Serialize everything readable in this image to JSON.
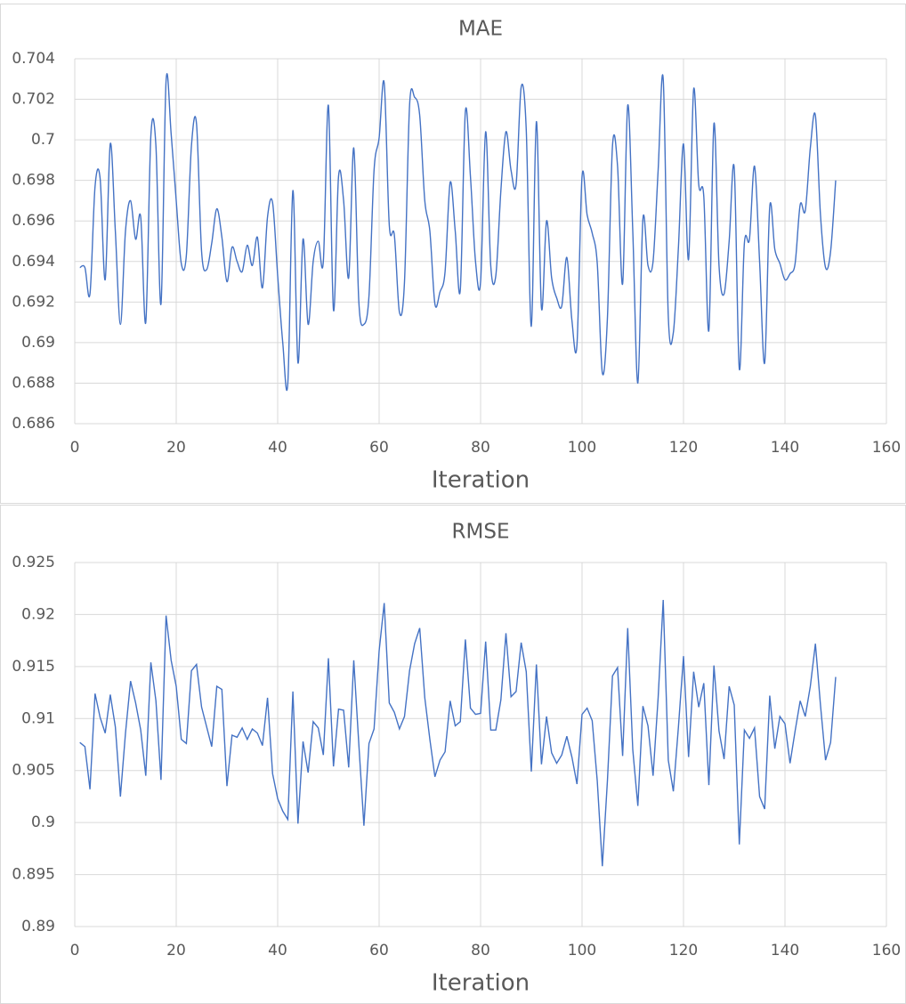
{
  "chart_data": [
    {
      "type": "line",
      "title": "MAE",
      "x_label": "Iteration",
      "smooth": true,
      "grid": true,
      "x": [
        1,
        2,
        3,
        4,
        5,
        6,
        7,
        8,
        9,
        10,
        11,
        12,
        13,
        14,
        15,
        16,
        17,
        18,
        19,
        20,
        21,
        22,
        23,
        24,
        25,
        26,
        27,
        28,
        29,
        30,
        31,
        32,
        33,
        34,
        35,
        36,
        37,
        38,
        39,
        40,
        41,
        42,
        43,
        44,
        45,
        46,
        47,
        48,
        49,
        50,
        51,
        52,
        53,
        54,
        55,
        56,
        57,
        58,
        59,
        60,
        61,
        62,
        63,
        64,
        65,
        66,
        67,
        68,
        69,
        70,
        71,
        72,
        73,
        74,
        75,
        76,
        77,
        78,
        79,
        80,
        81,
        82,
        83,
        84,
        85,
        86,
        87,
        88,
        89,
        90,
        91,
        92,
        93,
        94,
        95,
        96,
        97,
        98,
        99,
        100,
        101,
        102,
        103,
        104,
        105,
        106,
        107,
        108,
        109,
        110,
        111,
        112,
        113,
        114,
        115,
        116,
        117,
        118,
        119,
        120,
        121,
        122,
        123,
        124,
        125,
        126,
        127,
        128,
        129,
        130,
        131,
        132,
        133,
        134,
        135,
        136,
        137,
        138,
        139,
        140,
        141,
        142,
        143,
        144,
        145,
        146,
        147,
        148,
        149,
        150
      ],
      "series": [
        {
          "color": "#4472c4",
          "values": [
            0.6937,
            0.6937,
            0.6924,
            0.6977,
            0.6981,
            0.6931,
            0.6998,
            0.6955,
            0.6909,
            0.6955,
            0.697,
            0.6951,
            0.6962,
            0.691,
            0.7002,
            0.6997,
            0.6919,
            0.7029,
            0.7003,
            0.697,
            0.6939,
            0.6943,
            0.6997,
            0.7008,
            0.6945,
            0.6936,
            0.6949,
            0.6966,
            0.6952,
            0.693,
            0.6947,
            0.694,
            0.6935,
            0.6948,
            0.6938,
            0.6952,
            0.6927,
            0.6962,
            0.6969,
            0.6933,
            0.69,
            0.688,
            0.6975,
            0.689,
            0.6951,
            0.6909,
            0.694,
            0.695,
            0.694,
            0.7017,
            0.6916,
            0.6982,
            0.697,
            0.6932,
            0.6996,
            0.692,
            0.6909,
            0.6923,
            0.6985,
            0.7001,
            0.7028,
            0.6958,
            0.6953,
            0.6915,
            0.693,
            0.7017,
            0.7021,
            0.7012,
            0.697,
            0.6955,
            0.6919,
            0.6925,
            0.6935,
            0.6979,
            0.6955,
            0.6926,
            0.7014,
            0.6982,
            0.694,
            0.693,
            0.7004,
            0.6938,
            0.6933,
            0.6975,
            0.7004,
            0.6985,
            0.6978,
            0.7026,
            0.7005,
            0.6908,
            0.7009,
            0.6917,
            0.696,
            0.6932,
            0.6922,
            0.6918,
            0.6942,
            0.6911,
            0.6899,
            0.6982,
            0.6963,
            0.6954,
            0.6939,
            0.6885,
            0.6912,
            0.6997,
            0.6987,
            0.6929,
            0.7017,
            0.6955,
            0.688,
            0.6961,
            0.6938,
            0.694,
            0.6985,
            0.703,
            0.6913,
            0.6905,
            0.6947,
            0.6998,
            0.6941,
            0.7025,
            0.6978,
            0.6972,
            0.6906,
            0.7008,
            0.6938,
            0.6924,
            0.695,
            0.6986,
            0.6887,
            0.6949,
            0.6951,
            0.6987,
            0.694,
            0.689,
            0.6967,
            0.6946,
            0.6939,
            0.6931,
            0.6934,
            0.6939,
            0.6968,
            0.6965,
            0.6996,
            0.7012,
            0.6963,
            0.6937,
            0.6945,
            0.698
          ]
        }
      ],
      "xlim": [
        0,
        160
      ],
      "xticks": [
        0,
        20,
        40,
        60,
        80,
        100,
        120,
        140,
        160
      ],
      "ylim": [
        0.686,
        0.704
      ],
      "yticks": [
        0.686,
        0.688,
        0.69,
        0.692,
        0.694,
        0.696,
        0.698,
        0.7,
        0.702,
        0.704
      ]
    },
    {
      "type": "line",
      "title": "RMSE",
      "x_label": "Iteration",
      "smooth": false,
      "grid": true,
      "x": [
        1,
        2,
        3,
        4,
        5,
        6,
        7,
        8,
        9,
        10,
        11,
        12,
        13,
        14,
        15,
        16,
        17,
        18,
        19,
        20,
        21,
        22,
        23,
        24,
        25,
        26,
        27,
        28,
        29,
        30,
        31,
        32,
        33,
        34,
        35,
        36,
        37,
        38,
        39,
        40,
        41,
        42,
        43,
        44,
        45,
        46,
        47,
        48,
        49,
        50,
        51,
        52,
        53,
        54,
        55,
        56,
        57,
        58,
        59,
        60,
        61,
        62,
        63,
        64,
        65,
        66,
        67,
        68,
        69,
        70,
        71,
        72,
        73,
        74,
        75,
        76,
        77,
        78,
        79,
        80,
        81,
        82,
        83,
        84,
        85,
        86,
        87,
        88,
        89,
        90,
        91,
        92,
        93,
        94,
        95,
        96,
        97,
        98,
        99,
        100,
        101,
        102,
        103,
        104,
        105,
        106,
        107,
        108,
        109,
        110,
        111,
        112,
        113,
        114,
        115,
        116,
        117,
        118,
        119,
        120,
        121,
        122,
        123,
        124,
        125,
        126,
        127,
        128,
        129,
        130,
        131,
        132,
        133,
        134,
        135,
        136,
        137,
        138,
        139,
        140,
        141,
        142,
        143,
        144,
        145,
        146,
        147,
        148,
        149,
        150
      ],
      "series": [
        {
          "color": "#4472c4",
          "values": [
            0.9077,
            0.9073,
            0.9032,
            0.9124,
            0.9101,
            0.9086,
            0.9123,
            0.9092,
            0.9025,
            0.9086,
            0.9136,
            0.9115,
            0.9089,
            0.9045,
            0.9154,
            0.9117,
            0.9041,
            0.9199,
            0.9156,
            0.9131,
            0.908,
            0.9076,
            0.9146,
            0.9152,
            0.9111,
            0.9092,
            0.9073,
            0.9131,
            0.9128,
            0.9035,
            0.9084,
            0.9082,
            0.9091,
            0.908,
            0.909,
            0.9086,
            0.9074,
            0.912,
            0.9047,
            0.9023,
            0.9011,
            0.9003,
            0.9126,
            0.8999,
            0.9078,
            0.9048,
            0.9097,
            0.9091,
            0.9065,
            0.9158,
            0.9054,
            0.9109,
            0.9108,
            0.9053,
            0.9156,
            0.9075,
            0.8997,
            0.9076,
            0.909,
            0.9165,
            0.9211,
            0.9115,
            0.9106,
            0.909,
            0.9102,
            0.9146,
            0.9172,
            0.9187,
            0.912,
            0.908,
            0.9044,
            0.906,
            0.9068,
            0.9117,
            0.9093,
            0.9097,
            0.9176,
            0.911,
            0.9104,
            0.9105,
            0.9174,
            0.9089,
            0.9089,
            0.9118,
            0.9182,
            0.9121,
            0.9126,
            0.9173,
            0.9145,
            0.9049,
            0.9152,
            0.9056,
            0.9102,
            0.9067,
            0.9057,
            0.9065,
            0.9083,
            0.9063,
            0.9037,
            0.9104,
            0.911,
            0.9098,
            0.904,
            0.8958,
            0.904,
            0.9141,
            0.9149,
            0.9064,
            0.9187,
            0.907,
            0.9016,
            0.9112,
            0.9093,
            0.9045,
            0.912,
            0.9214,
            0.906,
            0.903,
            0.9092,
            0.916,
            0.9063,
            0.9145,
            0.9111,
            0.9134,
            0.9036,
            0.9151,
            0.9088,
            0.9061,
            0.9131,
            0.9113,
            0.8979,
            0.9089,
            0.9081,
            0.9091,
            0.9025,
            0.9013,
            0.9122,
            0.9071,
            0.9102,
            0.9095,
            0.9057,
            0.9088,
            0.9117,
            0.9102,
            0.9131,
            0.9172,
            0.9113,
            0.906,
            0.9077,
            0.914
          ]
        }
      ],
      "xlim": [
        0,
        160
      ],
      "xticks": [
        0,
        20,
        40,
        60,
        80,
        100,
        120,
        140,
        160
      ],
      "ylim": [
        0.89,
        0.925
      ],
      "yticks": [
        0.89,
        0.895,
        0.9,
        0.905,
        0.91,
        0.915,
        0.92,
        0.925
      ]
    }
  ]
}
